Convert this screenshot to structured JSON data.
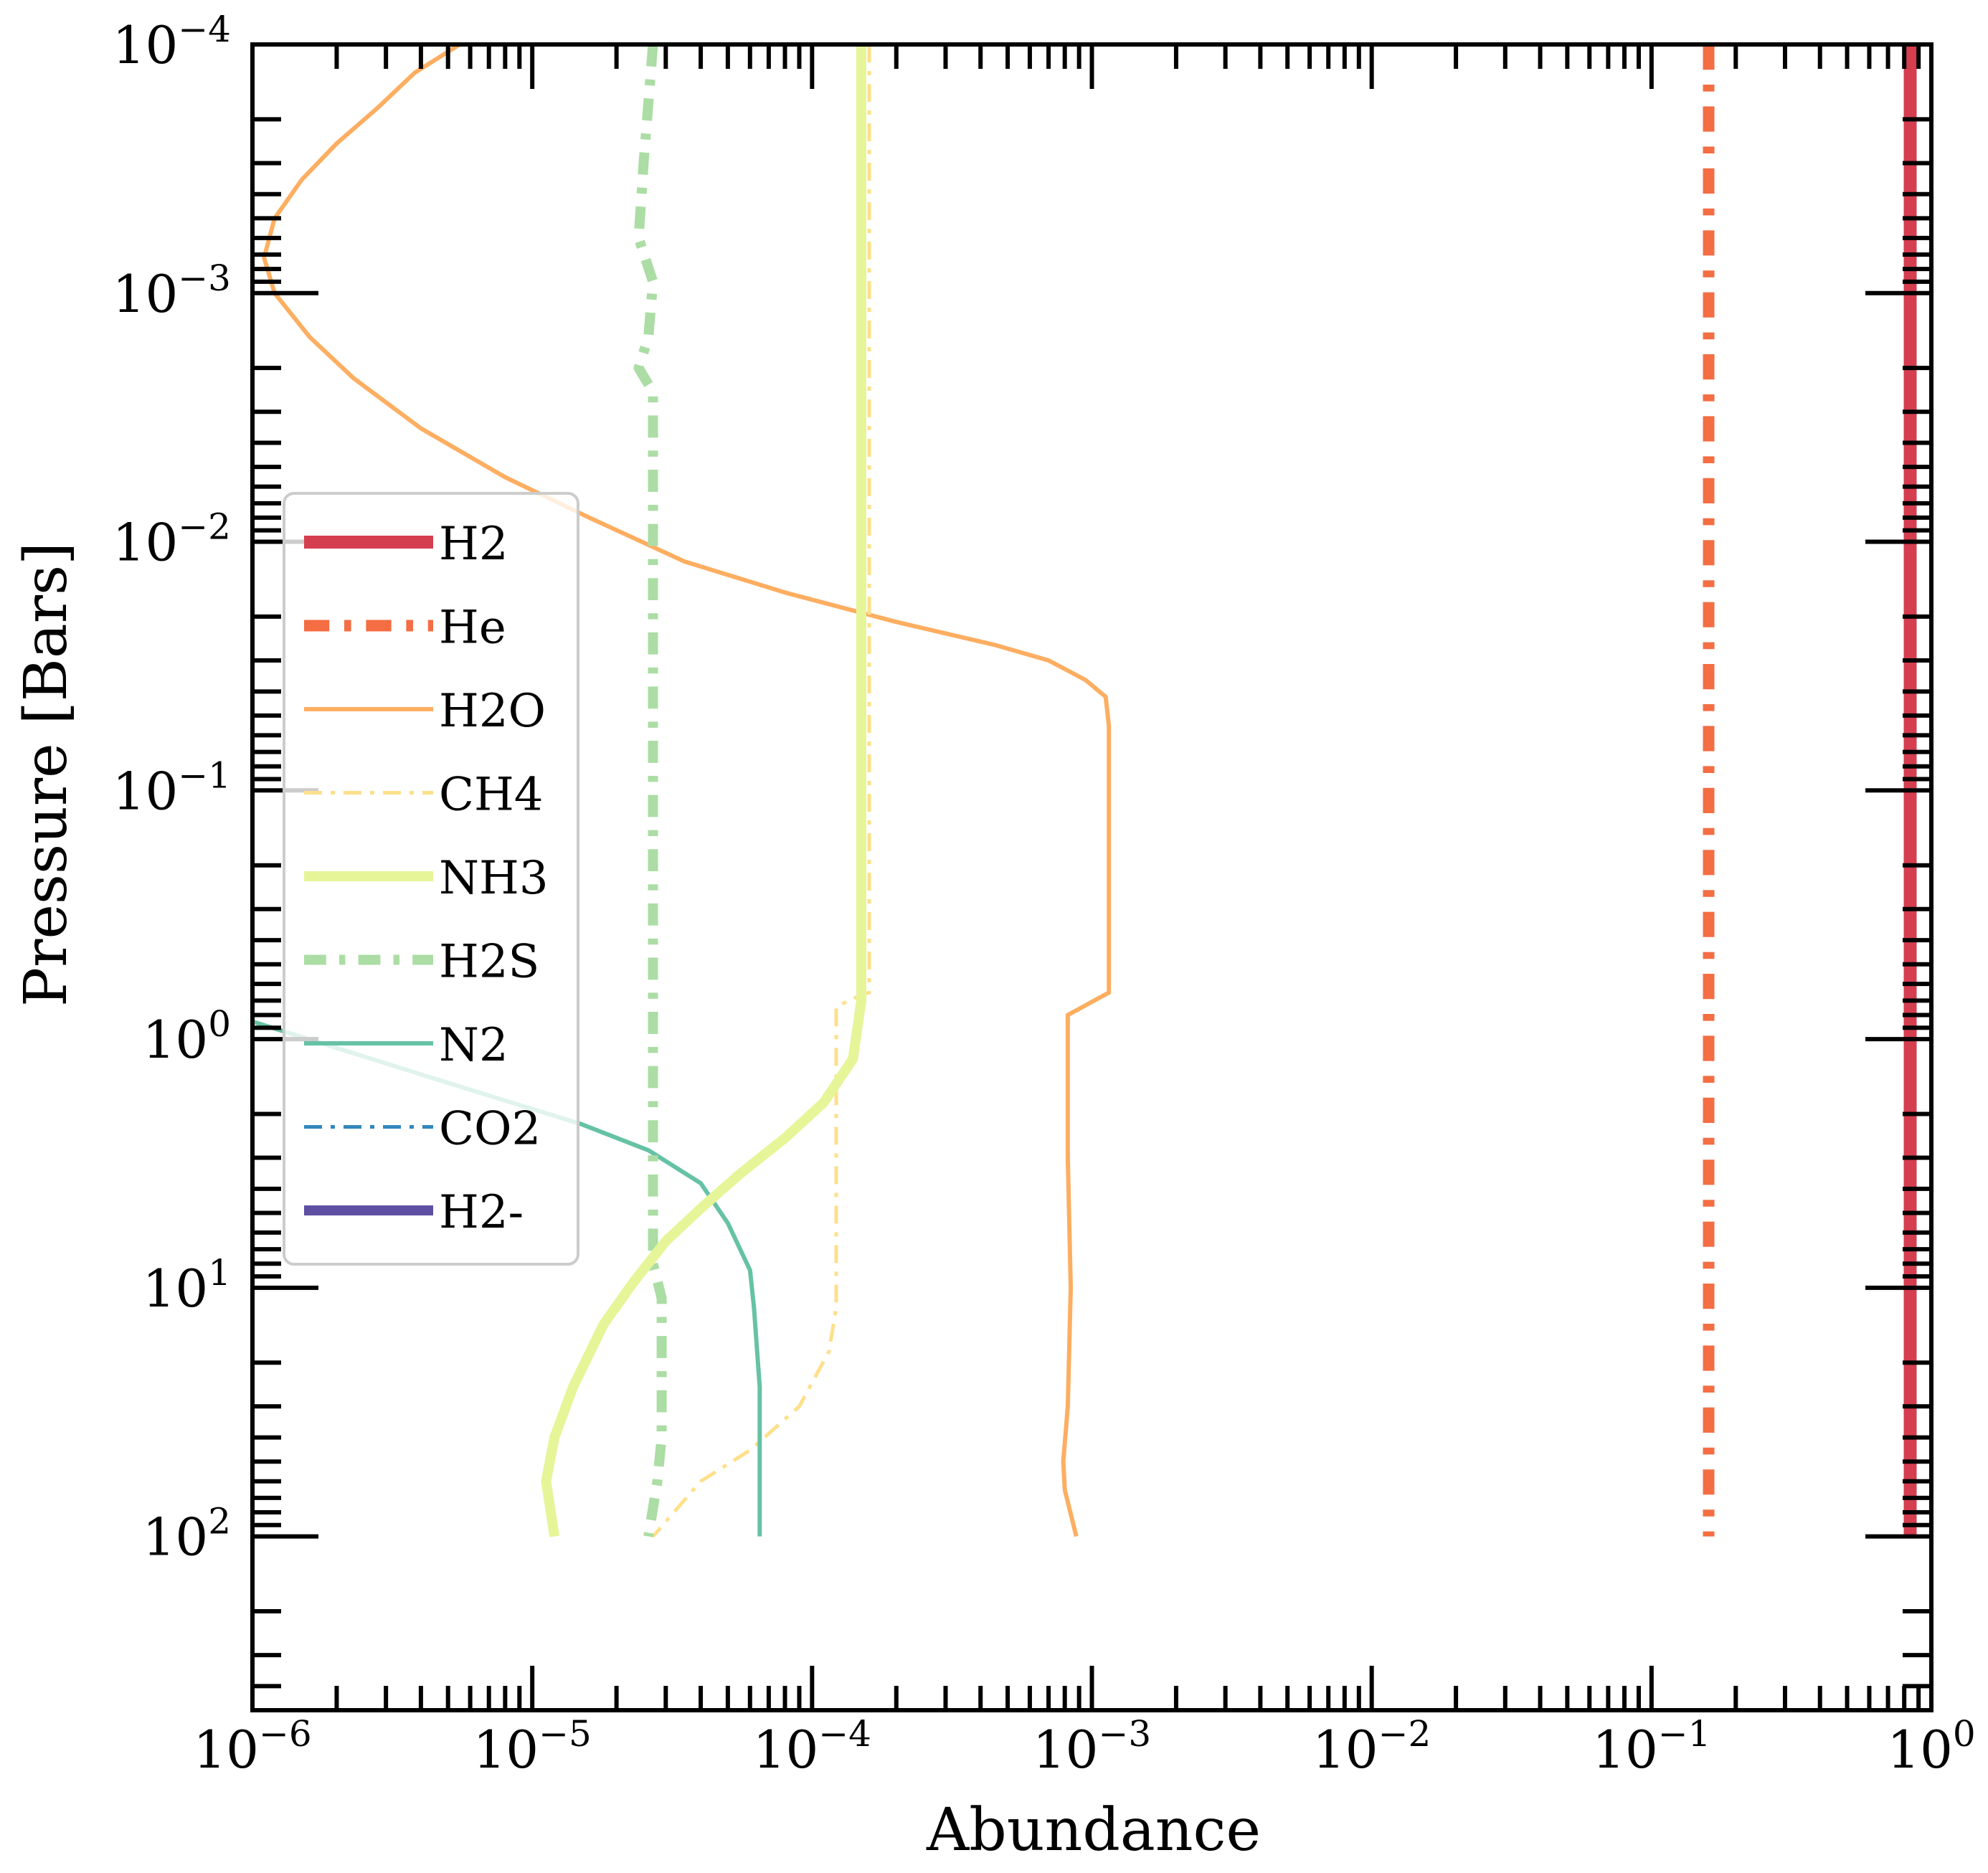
{
  "chart_data": {
    "type": "line",
    "xlabel": "Abundance",
    "ylabel": "Pressure [Bars]",
    "xscale": "log",
    "yscale": "log",
    "yaxis_inverted": true,
    "xlim": [
      1e-06,
      1
    ],
    "ylim": [
      500,
      0.0001
    ],
    "grid": false,
    "legend_position": "center-left",
    "x_ticks": [
      {
        "value": 1e-06,
        "label": "10",
        "exp": "−6"
      },
      {
        "value": 1e-05,
        "label": "10",
        "exp": "−5"
      },
      {
        "value": 0.0001,
        "label": "10",
        "exp": "−4"
      },
      {
        "value": 0.001,
        "label": "10",
        "exp": "−3"
      },
      {
        "value": 0.01,
        "label": "10",
        "exp": "−2"
      },
      {
        "value": 0.1,
        "label": "10",
        "exp": "−1"
      },
      {
        "value": 1,
        "label": "10",
        "exp": "0"
      }
    ],
    "y_ticks": [
      {
        "value": 0.0001,
        "label": "10",
        "exp": "−4"
      },
      {
        "value": 0.001,
        "label": "10",
        "exp": "−3"
      },
      {
        "value": 0.01,
        "label": "10",
        "exp": "−2"
      },
      {
        "value": 0.1,
        "label": "10",
        "exp": "−1"
      },
      {
        "value": 1,
        "label": "10",
        "exp": "0"
      },
      {
        "value": 10,
        "label": "10",
        "exp": "1"
      },
      {
        "value": 100,
        "label": "10",
        "exp": "2"
      }
    ],
    "series": [
      {
        "name": "H2",
        "color": "#d53e4f",
        "style": "solid",
        "width": 18,
        "points": [
          [
            0.84,
            0.0001
          ],
          [
            0.84,
            100
          ]
        ]
      },
      {
        "name": "He",
        "color": "#f46d43",
        "style": "dashdot",
        "width": 16,
        "points": [
          [
            0.16,
            0.0001
          ],
          [
            0.16,
            100
          ]
        ]
      },
      {
        "name": "H2O",
        "color": "#fdae61",
        "style": "solid",
        "width": 6,
        "points": [
          [
            5.5e-06,
            0.0001
          ],
          [
            3.8e-06,
            0.00013
          ],
          [
            2.8e-06,
            0.00018
          ],
          [
            2e-06,
            0.00025
          ],
          [
            1.5e-06,
            0.00035
          ],
          [
            1.2e-06,
            0.0005
          ],
          [
            1.1e-06,
            0.00072
          ],
          [
            1.2e-06,
            0.001
          ],
          [
            1.6e-06,
            0.0015
          ],
          [
            2.3e-06,
            0.0022
          ],
          [
            4e-06,
            0.0035
          ],
          [
            8e-06,
            0.0055
          ],
          [
            1.6e-05,
            0.008
          ],
          [
            3.5e-05,
            0.012
          ],
          [
            8e-05,
            0.016
          ],
          [
            0.0002,
            0.021
          ],
          [
            0.00045,
            0.026
          ],
          [
            0.0007,
            0.03
          ],
          [
            0.00095,
            0.036
          ],
          [
            0.00112,
            0.042
          ],
          [
            0.00115,
            0.055
          ],
          [
            0.00115,
            0.2
          ],
          [
            0.00115,
            0.65
          ],
          [
            0.00082,
            0.8
          ],
          [
            0.00082,
            3.0
          ],
          [
            0.00084,
            10.0
          ],
          [
            0.00082,
            30.0
          ],
          [
            0.00079,
            50.0
          ],
          [
            0.0008,
            65.0
          ],
          [
            0.00088,
            100.0
          ]
        ]
      },
      {
        "name": "CH4",
        "color": "#fee08b",
        "style": "dashdot",
        "width": 5,
        "points": [
          [
            0.00016,
            0.0001
          ],
          [
            0.00016,
            0.65
          ],
          [
            0.000152,
            0.66
          ],
          [
            0.000122,
            0.74
          ],
          [
            0.000122,
            12.0
          ],
          [
            0.000115,
            18.0
          ],
          [
            9e-05,
            30.0
          ],
          [
            6e-05,
            45.0
          ],
          [
            4e-05,
            60.0
          ],
          [
            2.7e-05,
            100.0
          ]
        ]
      },
      {
        "name": "NH3",
        "color": "#e6f598",
        "style": "solid",
        "width": 14,
        "points": [
          [
            0.00015,
            0.0001
          ],
          [
            0.00015,
            0.3
          ],
          [
            0.00015,
            0.7
          ],
          [
            0.00014,
            1.2
          ],
          [
            0.00011,
            1.8
          ],
          [
            8e-05,
            2.5
          ],
          [
            5.5e-05,
            3.5
          ],
          [
            4e-05,
            4.8
          ],
          [
            3e-05,
            6.5
          ],
          [
            2.3e-05,
            9.5
          ],
          [
            1.8e-05,
            14.0
          ],
          [
            1.4e-05,
            25.0
          ],
          [
            1.2e-05,
            40.0
          ],
          [
            1.12e-05,
            60.0
          ],
          [
            1.2e-05,
            100.0
          ]
        ]
      },
      {
        "name": "H2S",
        "color": "#abdda4",
        "style": "dashdot",
        "width": 14,
        "points": [
          [
            2.7e-05,
            0.0001
          ],
          [
            2.5e-05,
            0.0003
          ],
          [
            2.4e-05,
            0.0006
          ],
          [
            2.7e-05,
            0.0009
          ],
          [
            2.6e-05,
            0.0015
          ],
          [
            2.4e-05,
            0.002
          ],
          [
            2.7e-05,
            0.0025
          ],
          [
            2.7e-05,
            0.1
          ],
          [
            2.7e-05,
            2.5
          ],
          [
            2.7e-05,
            8.0
          ],
          [
            2.9e-05,
            11.0
          ],
          [
            2.9e-05,
            40.0
          ],
          [
            2.8e-05,
            60.0
          ],
          [
            2.6e-05,
            100.0
          ]
        ]
      },
      {
        "name": "N2",
        "color": "#66c2a5",
        "style": "solid",
        "width": 6,
        "points": [
          [
            1e-06,
            0.85
          ],
          [
            5e-06,
            1.5
          ],
          [
            1.5e-05,
            2.2
          ],
          [
            2.6e-05,
            2.8
          ],
          [
            4e-05,
            3.8
          ],
          [
            5e-05,
            5.5
          ],
          [
            6e-05,
            8.5
          ],
          [
            6.2e-05,
            12.0
          ],
          [
            6.5e-05,
            25.0
          ],
          [
            6.5e-05,
            100.0
          ]
        ]
      },
      {
        "name": "CO2",
        "color": "#3288bd",
        "style": "dashdot",
        "width": 5,
        "points": []
      },
      {
        "name": "H2-",
        "color": "#5e4fa2",
        "style": "solid",
        "width": 14,
        "points": []
      }
    ]
  }
}
